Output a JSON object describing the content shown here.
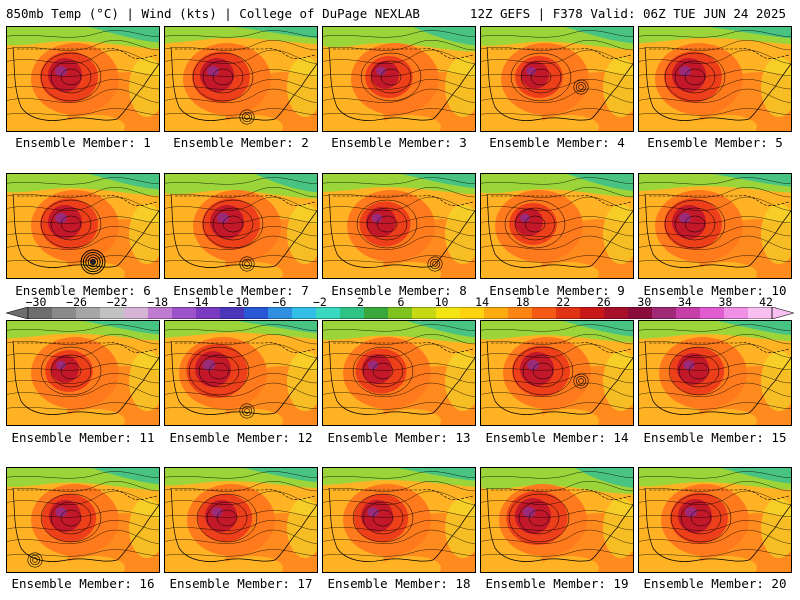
{
  "header": {
    "left": "850mb Temp (°C) | Wind (kts) | College of DuPage NEXLAB",
    "right": "12Z GEFS | F378 Valid: 06Z TUE JUN 24 2025"
  },
  "panels": [
    {
      "label": "Ensemble Member: 1",
      "heat": 0.85,
      "cold_north": 0.55,
      "west_bias": 0.7,
      "low": null
    },
    {
      "label": "Ensemble Member: 2",
      "heat": 0.85,
      "cold_north": 0.25,
      "west_bias": 0.55,
      "low": "southeast"
    },
    {
      "label": "Ensemble Member: 3",
      "heat": 0.7,
      "cold_north": 0.75,
      "west_bias": 0.8,
      "low": null
    },
    {
      "label": "Ensemble Member: 4",
      "heat": 0.7,
      "cold_north": 0.6,
      "west_bias": 0.6,
      "low": "east"
    },
    {
      "label": "Ensemble Member: 5",
      "heat": 0.85,
      "cold_north": 0.25,
      "west_bias": 0.5,
      "low": null
    },
    {
      "label": "Ensemble Member: 6",
      "heat": 0.85,
      "cold_north": 0.55,
      "west_bias": 0.7,
      "low": "gulf-strong"
    },
    {
      "label": "Ensemble Member: 7",
      "heat": 0.85,
      "cold_north": 0.75,
      "west_bias": 0.8,
      "low": "southeast"
    },
    {
      "label": "Ensemble Member: 8",
      "heat": 0.75,
      "cold_north": 0.45,
      "west_bias": 0.7,
      "low": "gulf"
    },
    {
      "label": "Ensemble Member: 9",
      "heat": 0.7,
      "cold_north": 0.65,
      "west_bias": 0.45,
      "low": null
    },
    {
      "label": "Ensemble Member: 10",
      "heat": 0.85,
      "cold_north": 0.35,
      "west_bias": 0.5,
      "low": null
    },
    {
      "label": "Ensemble Member: 11",
      "heat": 0.7,
      "cold_north": 0.4,
      "west_bias": 0.7,
      "low": null
    },
    {
      "label": "Ensemble Member: 12",
      "heat": 0.9,
      "cold_north": 0.3,
      "west_bias": 0.45,
      "low": "southeast"
    },
    {
      "label": "Ensemble Member: 13",
      "heat": 0.75,
      "cold_north": 0.6,
      "west_bias": 0.6,
      "low": null
    },
    {
      "label": "Ensemble Member: 14",
      "heat": 0.85,
      "cold_north": 0.55,
      "west_bias": 0.65,
      "low": "east"
    },
    {
      "label": "Ensemble Member: 15",
      "heat": 0.8,
      "cold_north": 0.45,
      "west_bias": 0.6,
      "low": null
    },
    {
      "label": "Ensemble Member: 16",
      "heat": 0.8,
      "cold_north": 0.6,
      "west_bias": 0.7,
      "low": "gulf-west"
    },
    {
      "label": "Ensemble Member: 17",
      "heat": 0.8,
      "cold_north": 0.45,
      "west_bias": 0.65,
      "low": null
    },
    {
      "label": "Ensemble Member: 18",
      "heat": 0.8,
      "cold_north": 0.35,
      "west_bias": 0.6,
      "low": null
    },
    {
      "label": "Ensemble Member: 19",
      "heat": 0.9,
      "cold_north": 0.85,
      "west_bias": 0.55,
      "low": null
    },
    {
      "label": "Ensemble Member: 20",
      "heat": 0.85,
      "cold_north": 0.55,
      "west_bias": 0.65,
      "low": null
    }
  ],
  "colorbar": {
    "labels": [
      "−30",
      "−26",
      "−22",
      "−18",
      "−14",
      "−10",
      "−6",
      "−2",
      "2",
      "6",
      "10",
      "14",
      "18",
      "22",
      "26",
      "30",
      "34",
      "38",
      "42"
    ],
    "colors": [
      "#6e6e6e",
      "#8a8a8a",
      "#a6a6a6",
      "#c2c2c2",
      "#d6b4d6",
      "#c07ad0",
      "#9d52c9",
      "#7a3bc0",
      "#4a36b8",
      "#2957d6",
      "#2f8fe0",
      "#33bfe8",
      "#39d8c0",
      "#2fc285",
      "#3aa83d",
      "#7ec21d",
      "#c7d914",
      "#f2e511",
      "#ffd30d",
      "#ffaa0f",
      "#ff8414",
      "#f45a15",
      "#e03414",
      "#c81818",
      "#a8102a",
      "#8a0c3c",
      "#a02a78",
      "#c63ea8",
      "#e05cd0",
      "#f090e4",
      "#f8c0f0"
    ]
  },
  "palette": {
    "cold": "#3bbf8f",
    "cool": "#9bd53a",
    "mild": "#f0df2a",
    "warm": "#ffb324",
    "hot": "#ff7a1c",
    "hotter": "#ec3f1a",
    "hottest": "#c2182a",
    "extreme": "#9a2a7a"
  }
}
